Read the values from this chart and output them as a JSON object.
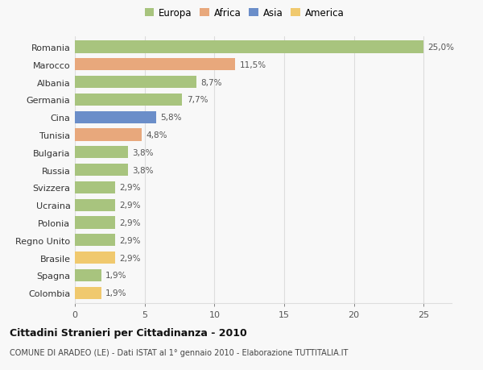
{
  "countries": [
    "Romania",
    "Marocco",
    "Albania",
    "Germania",
    "Cina",
    "Tunisia",
    "Bulgaria",
    "Russia",
    "Svizzera",
    "Ucraina",
    "Polonia",
    "Regno Unito",
    "Brasile",
    "Spagna",
    "Colombia"
  ],
  "values": [
    25.0,
    11.5,
    8.7,
    7.7,
    5.8,
    4.8,
    3.8,
    3.8,
    2.9,
    2.9,
    2.9,
    2.9,
    2.9,
    1.9,
    1.9
  ],
  "labels": [
    "25,0%",
    "11,5%",
    "8,7%",
    "7,7%",
    "5,8%",
    "4,8%",
    "3,8%",
    "3,8%",
    "2,9%",
    "2,9%",
    "2,9%",
    "2,9%",
    "2,9%",
    "1,9%",
    "1,9%"
  ],
  "continents": [
    "Europa",
    "Africa",
    "Europa",
    "Europa",
    "Asia",
    "Africa",
    "Europa",
    "Europa",
    "Europa",
    "Europa",
    "Europa",
    "Europa",
    "America",
    "Europa",
    "America"
  ],
  "colors": {
    "Europa": "#a8c47e",
    "Africa": "#e8a87c",
    "Asia": "#6b8ec9",
    "America": "#f0c96e"
  },
  "legend_items": [
    "Europa",
    "Africa",
    "Asia",
    "America"
  ],
  "legend_colors": [
    "#a8c47e",
    "#e8a87c",
    "#6b8ec9",
    "#f0c96e"
  ],
  "title": "Cittadini Stranieri per Cittadinanza - 2010",
  "subtitle": "COMUNE DI ARADEO (LE) - Dati ISTAT al 1° gennaio 2010 - Elaborazione TUTTITALIA.IT",
  "xlim": [
    0,
    27
  ],
  "xticks": [
    0,
    5,
    10,
    15,
    20,
    25
  ],
  "background_color": "#f8f8f8",
  "grid_color": "#dddddd"
}
